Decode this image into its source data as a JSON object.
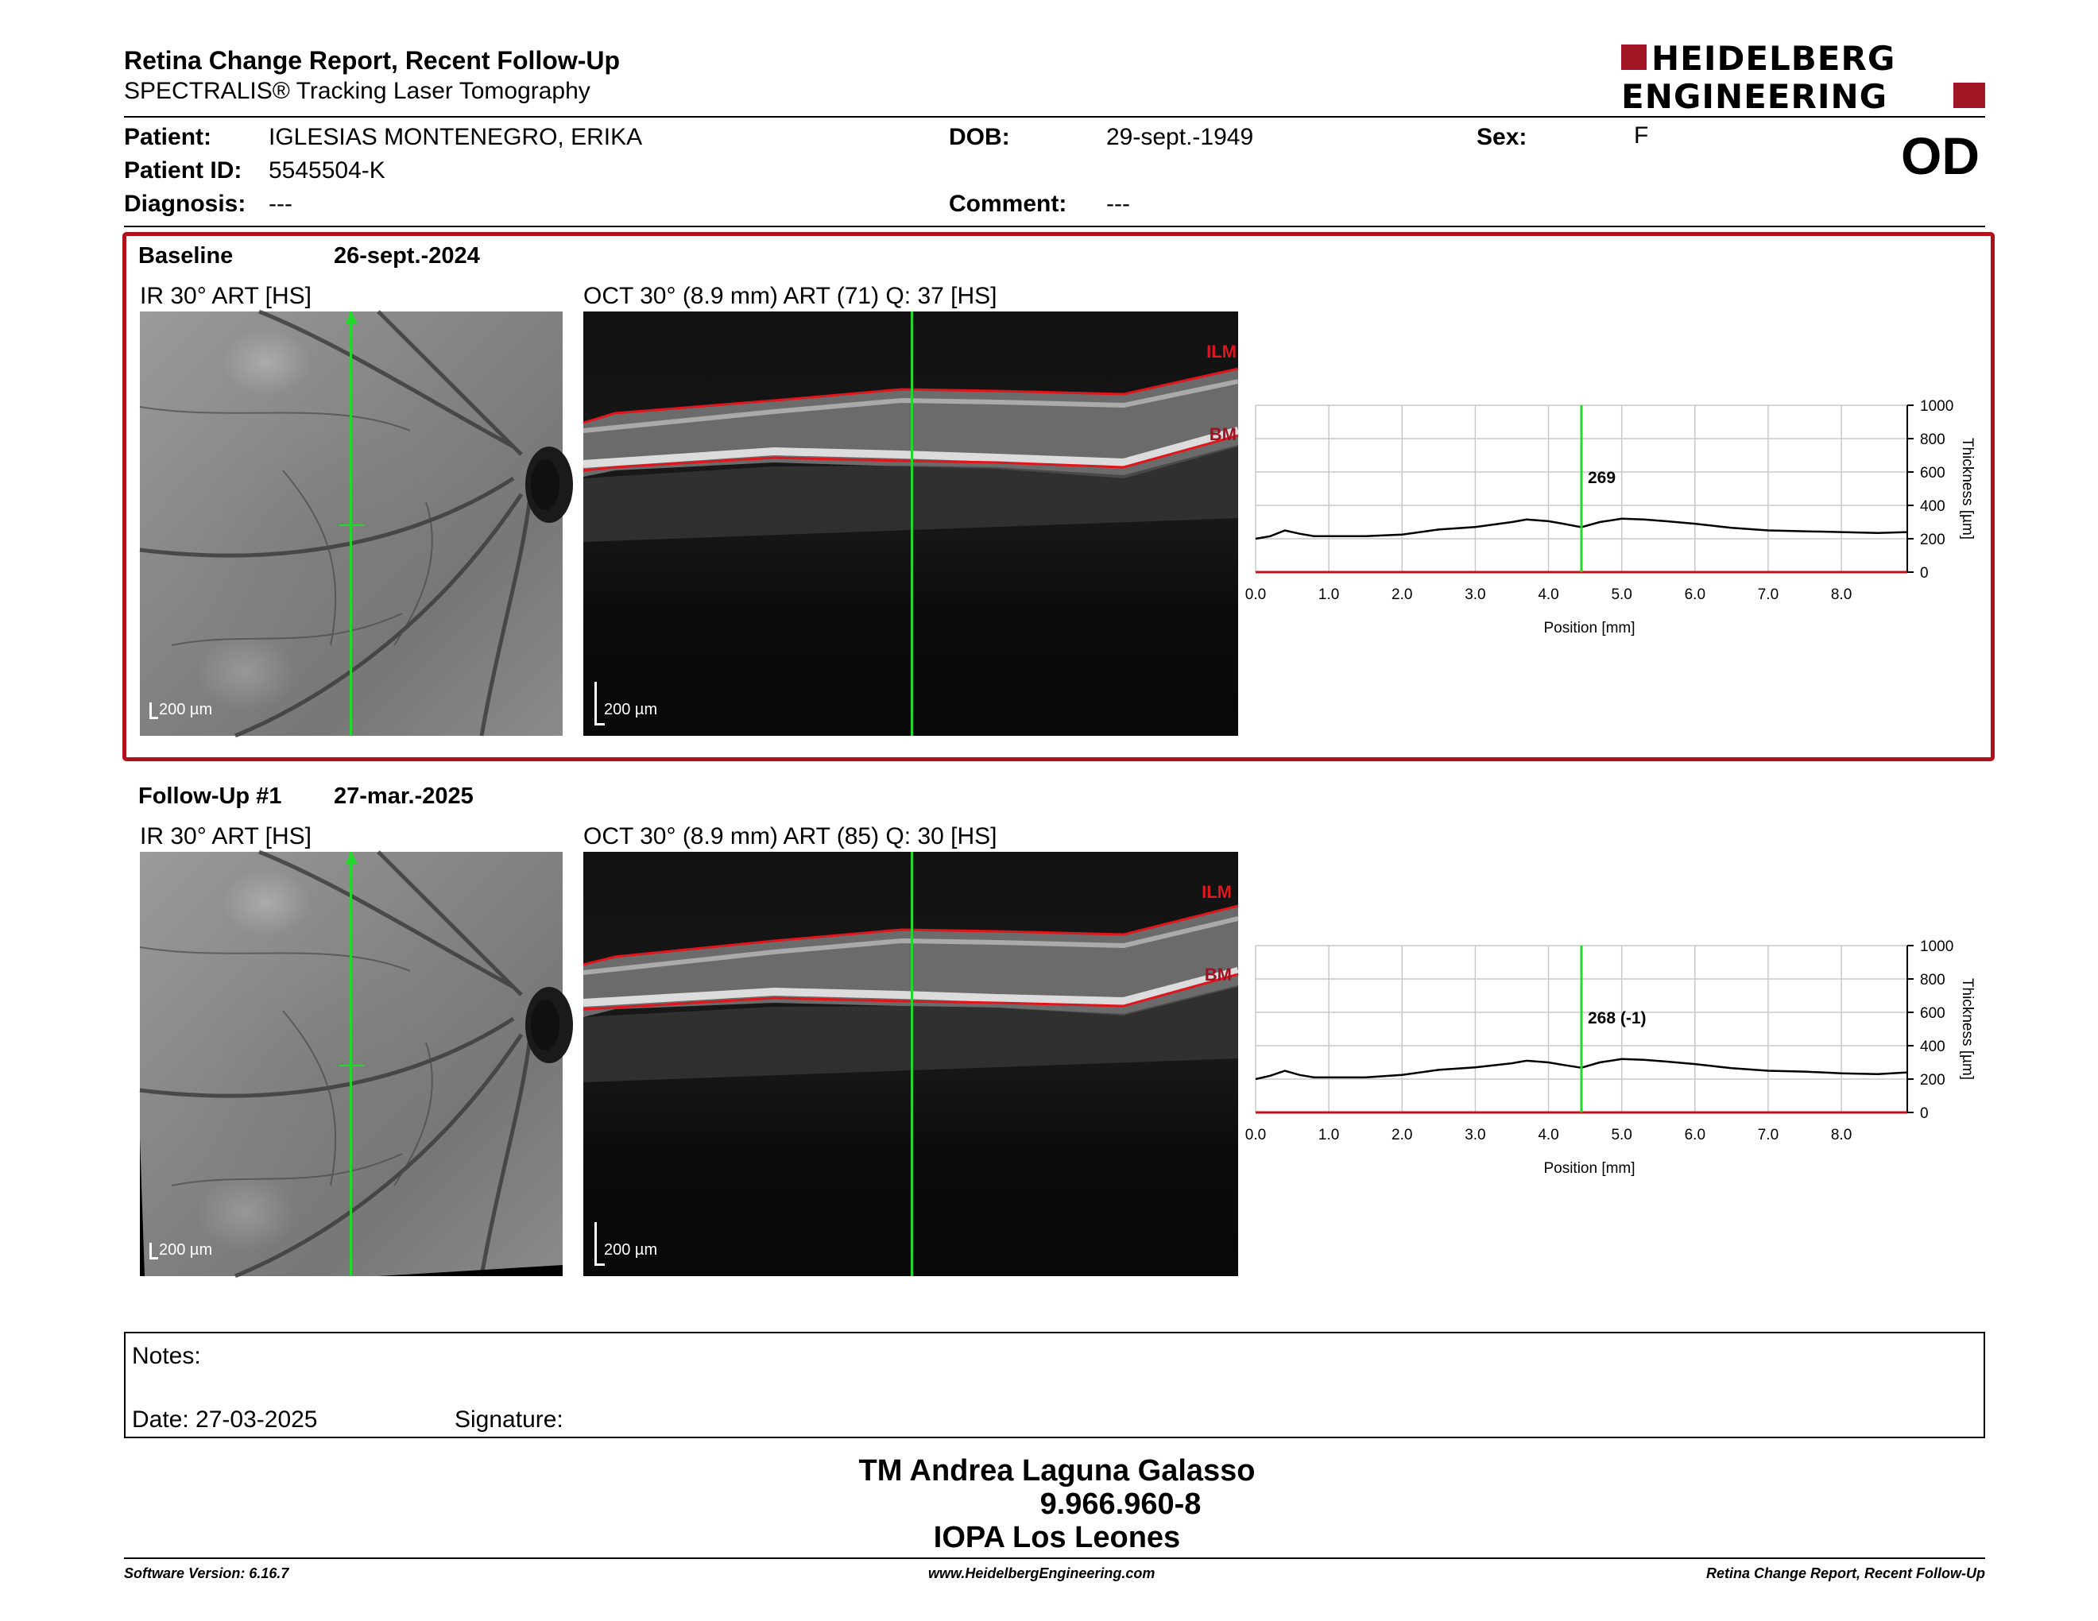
{
  "header": {
    "title": "Retina Change Report, Recent Follow-Up",
    "subtitle": "SPECTRALIS® Tracking Laser Tomography",
    "logo_line1": "HEIDELBERG",
    "logo_line2": "ENGINEERING",
    "eye": "OD"
  },
  "patient": {
    "patient_label": "Patient:",
    "patient_value": "IGLESIAS MONTENEGRO, ERIKA",
    "id_label": "Patient ID:",
    "id_value": "5545504-K",
    "diagnosis_label": "Diagnosis:",
    "diagnosis_value": "---",
    "dob_label": "DOB:",
    "dob_value": "29-sept.-1949",
    "comment_label": "Comment:",
    "comment_value": "---",
    "sex_label": "Sex:",
    "sex_value": "F"
  },
  "baseline": {
    "label": "Baseline",
    "date": "26-sept.-2024",
    "ir_label": "IR 30° ART [HS]",
    "oct_label": "OCT 30° (8.9 mm) ART (71) Q: 37 [HS]",
    "ir_scale": "200 µm",
    "oct_scale": "200 µm",
    "ilm": "ILM",
    "bm": "BM",
    "marker_value": "269"
  },
  "followup": {
    "label": "Follow-Up #1",
    "date": "27-mar.-2025",
    "ir_label": "IR 30° ART [HS]",
    "oct_label": "OCT 30° (8.9 mm) ART (85) Q: 30 [HS]",
    "ir_scale": "200 µm",
    "oct_scale": "200 µm",
    "ilm": "ILM",
    "bm": "BM",
    "marker_value": "268 (-1)"
  },
  "chart_data": [
    {
      "type": "line",
      "xlabel": "Position [mm]",
      "ylabel": "Thickness [µm]",
      "xlim": [
        0,
        8.9
      ],
      "ylim": [
        0,
        1000
      ],
      "xticks": [
        "0.0",
        "1.0",
        "2.0",
        "3.0",
        "4.0",
        "5.0",
        "6.0",
        "7.0",
        "8.0"
      ],
      "yticks": [
        "0",
        "200",
        "400",
        "600",
        "800",
        "1000"
      ],
      "grid": true,
      "marker_x": 4.45,
      "marker_label": "269",
      "x": [
        0.0,
        0.2,
        0.4,
        0.6,
        0.8,
        1.0,
        1.5,
        2.0,
        2.5,
        3.0,
        3.5,
        3.7,
        4.0,
        4.2,
        4.45,
        4.7,
        5.0,
        5.3,
        5.6,
        6.0,
        6.5,
        7.0,
        7.5,
        8.0,
        8.5,
        8.9
      ],
      "values": [
        200,
        215,
        250,
        230,
        215,
        215,
        215,
        225,
        255,
        270,
        300,
        315,
        305,
        290,
        269,
        300,
        320,
        315,
        305,
        290,
        265,
        250,
        245,
        240,
        235,
        240
      ]
    },
    {
      "type": "line",
      "xlabel": "Position [mm]",
      "ylabel": "Thickness [µm]",
      "xlim": [
        0,
        8.9
      ],
      "ylim": [
        0,
        1000
      ],
      "xticks": [
        "0.0",
        "1.0",
        "2.0",
        "3.0",
        "4.0",
        "5.0",
        "6.0",
        "7.0",
        "8.0"
      ],
      "yticks": [
        "0",
        "200",
        "400",
        "600",
        "800",
        "1000"
      ],
      "grid": true,
      "marker_x": 4.45,
      "marker_label": "268 (-1)",
      "x": [
        0.0,
        0.2,
        0.4,
        0.6,
        0.8,
        1.0,
        1.5,
        2.0,
        2.5,
        3.0,
        3.5,
        3.7,
        4.0,
        4.2,
        4.45,
        4.7,
        5.0,
        5.3,
        5.6,
        6.0,
        6.5,
        7.0,
        7.5,
        8.0,
        8.5,
        8.9
      ],
      "values": [
        200,
        220,
        250,
        225,
        210,
        210,
        210,
        225,
        255,
        270,
        295,
        310,
        300,
        285,
        268,
        300,
        320,
        315,
        305,
        290,
        265,
        250,
        245,
        235,
        230,
        240
      ]
    }
  ],
  "notes": {
    "notes_label": "Notes:",
    "date_label": "Date: 27-03-2025",
    "signature_label": "Signature:"
  },
  "signature": {
    "name": "TM Andrea Laguna Galasso",
    "rut": "9.966.960-8",
    "institution": "IOPA Los Leones"
  },
  "footer": {
    "software": "Software Version: 6.16.7",
    "website": "www.HeidelbergEngineering.com",
    "report": "Retina Change Report, Recent Follow-Up"
  },
  "colors": {
    "brand_red": "#a01624",
    "frame_red": "#b0101c",
    "marker_green": "#22d82a",
    "layer_red": "#e0161c"
  }
}
